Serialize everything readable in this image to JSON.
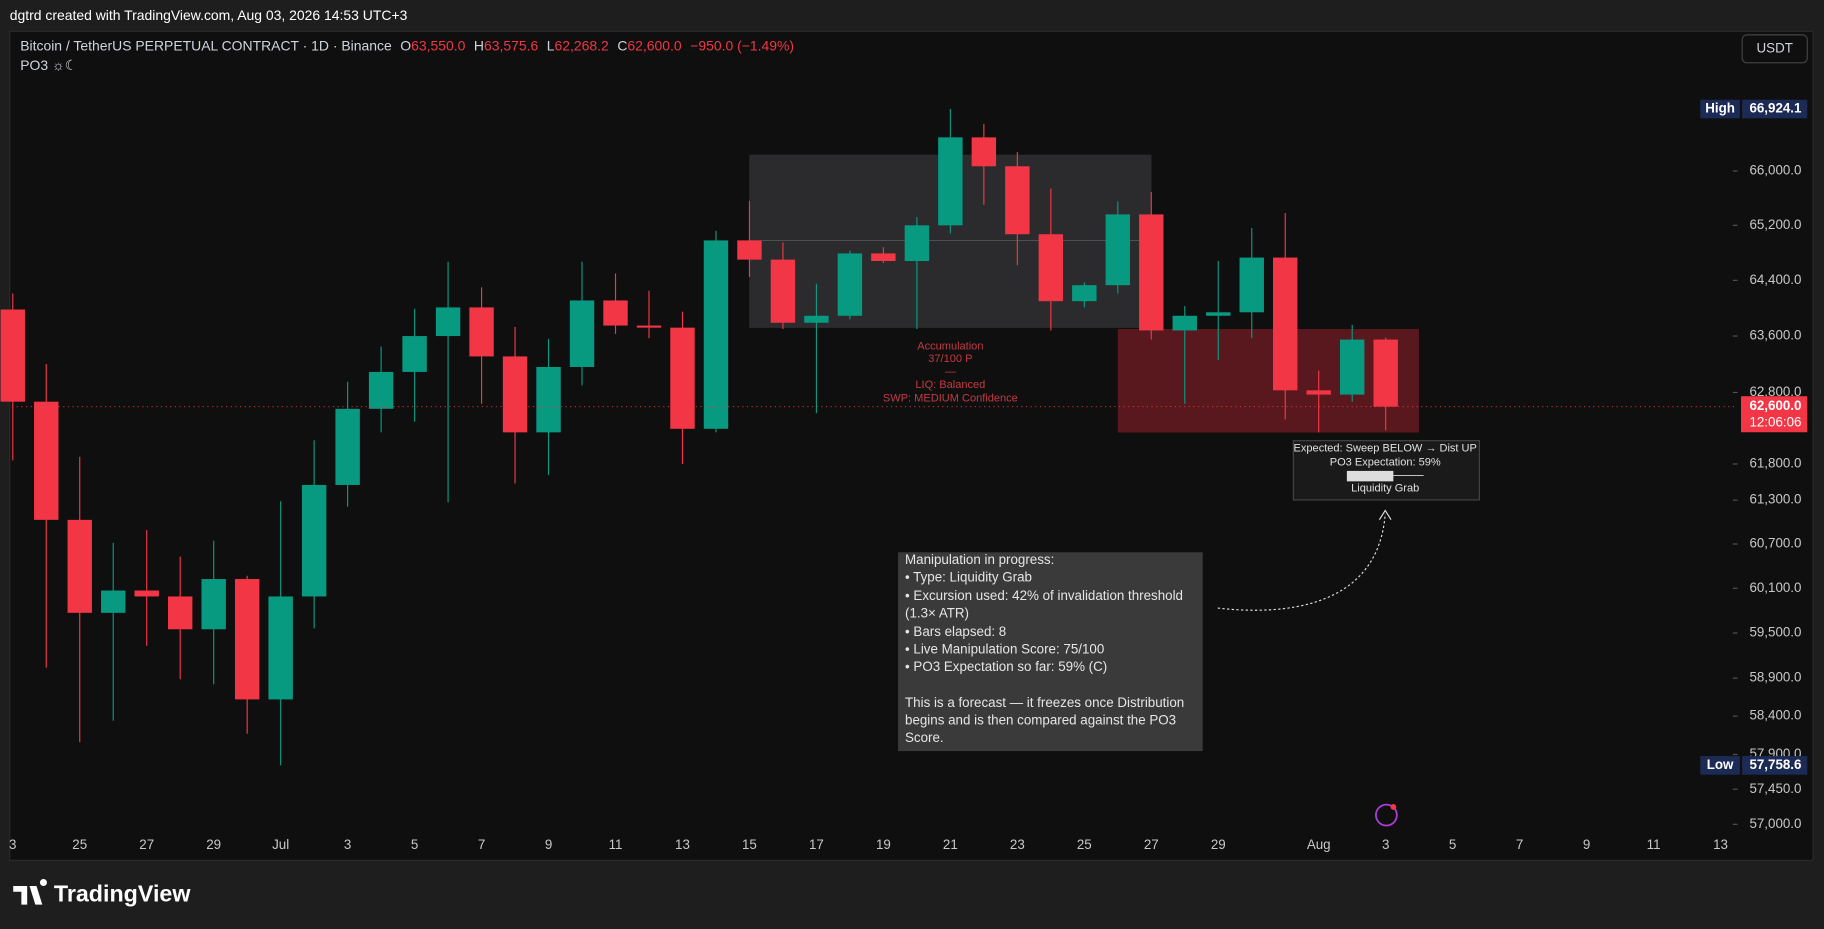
{
  "header": {
    "credit": "dgtrd created with TradingView.com, Aug 03, 2026 14:53 UTC+3",
    "brand": "TradingView"
  },
  "chart_data": {
    "type": "candlestick",
    "title": "Bitcoin / TetherUS PERPETUAL CONTRACT · 1D · Binance",
    "ohlc_header": [
      {
        "name": "O",
        "label": "63,550.0"
      },
      {
        "name": "H",
        "label": "63,575.6"
      },
      {
        "name": "L",
        "label": "62,268.2"
      },
      {
        "name": "C",
        "label": "62,600.0"
      }
    ],
    "change": "−950.0 (−1.49%)",
    "indicator": "PO3 ☼☾",
    "currency": "USDT",
    "categories": [
      "3",
      null,
      "25",
      null,
      "27",
      null,
      "29",
      null,
      "Jul",
      null,
      "3",
      null,
      "5",
      null,
      "7",
      null,
      "9",
      null,
      "11",
      null,
      "13",
      null,
      "15",
      null,
      "17",
      null,
      "19",
      null,
      "21",
      null,
      "23",
      null,
      "25",
      null,
      "27",
      null,
      "29",
      null,
      null,
      "Aug",
      null,
      "3",
      null,
      "5",
      null,
      "7",
      null,
      "9",
      null,
      "11",
      null,
      "13"
    ],
    "open": [
      63980,
      62670,
      61030,
      59770,
      60070,
      59990,
      59550,
      60225,
      58620,
      59990,
      61510,
      62570,
      63090,
      63600,
      64010,
      63310,
      62240,
      63160,
      64110,
      63750,
      63720,
      62290,
      64980,
      64700,
      63790,
      63890,
      64790,
      64680,
      65200,
      66500,
      66070,
      65070,
      64100,
      64330,
      65360,
      63680,
      63890,
      63940,
      64730,
      62830,
      62770,
      63550,
      null,
      null,
      null,
      null,
      null,
      null,
      null,
      null,
      null,
      null
    ],
    "high": [
      64210,
      63200,
      61900,
      60715,
      60890,
      60530,
      60745,
      60270,
      61285,
      62130,
      62950,
      63450,
      63990,
      64670,
      64300,
      63730,
      63560,
      64670,
      64500,
      64250,
      63950,
      65120,
      65560,
      64950,
      64350,
      64830,
      64880,
      65320,
      66924.1,
      66700,
      66280,
      65740,
      64370,
      65550,
      65690,
      64030,
      64680,
      65160,
      65380,
      63110,
      63760,
      63575.6,
      null,
      null,
      null,
      null,
      null,
      null,
      null,
      null,
      null,
      null
    ],
    "low": [
      61850,
      59040,
      58060,
      58340,
      59330,
      58885,
      58820,
      58170,
      57758.6,
      59560,
      61210,
      62240,
      62390,
      61270,
      62640,
      61530,
      61650,
      62900,
      63630,
      63570,
      61800,
      62240,
      64450,
      63700,
      62510,
      63840,
      64650,
      63700,
      65080,
      65500,
      64620,
      63680,
      64010,
      64210,
      63550,
      62640,
      63260,
      63570,
      62420,
      62240,
      62670,
      62268.2,
      null,
      null,
      null,
      null,
      null,
      null,
      null,
      null,
      null,
      null
    ],
    "close": [
      62670,
      61030,
      59770,
      60070,
      59990,
      59550,
      60225,
      58620,
      59990,
      61510,
      62570,
      63090,
      63600,
      64010,
      63310,
      62240,
      63160,
      64110,
      63750,
      63720,
      62290,
      64980,
      64700,
      63790,
      63890,
      64790,
      64680,
      65200,
      66500,
      66070,
      65070,
      64100,
      64330,
      65360,
      63680,
      63890,
      63940,
      64730,
      62830,
      62770,
      63550,
      62600,
      null,
      null,
      null,
      null,
      null,
      null,
      null,
      null,
      null,
      null
    ],
    "up_color": "#089981",
    "down_color": "#f23645",
    "log_scale": true,
    "ylim": [
      56540,
      68100
    ],
    "yticks": [
      {
        "value": 66000,
        "label": "66,000.0"
      },
      {
        "value": 65200,
        "label": "65,200.0"
      },
      {
        "value": 64400,
        "label": "64,400.0"
      },
      {
        "value": 63600,
        "label": "63,600.0"
      },
      {
        "value": 62800,
        "label": "62,800.0"
      },
      {
        "value": 61800,
        "label": "61,800.0"
      },
      {
        "value": 61300,
        "label": "61,300.0"
      },
      {
        "value": 60700,
        "label": "60,700.0"
      },
      {
        "value": 60100,
        "label": "60,100.0"
      },
      {
        "value": 59500,
        "label": "59,500.0"
      },
      {
        "value": 58900,
        "label": "58,900.0"
      },
      {
        "value": 58400,
        "label": "58,400.0"
      },
      {
        "value": 57900,
        "label": "57,900.0"
      },
      {
        "value": 57450,
        "label": "57,450.0"
      },
      {
        "value": 57000,
        "label": "57,000.0"
      }
    ],
    "price_markers": [
      {
        "name": "High",
        "value": 66924.1,
        "label": "66,924.1"
      },
      {
        "name": "Low",
        "value": 57758.6,
        "label": "57,758.6"
      }
    ],
    "last_price": {
      "value": 62600,
      "label": "62,600.0",
      "countdown": "12:06:06"
    },
    "annotations": {
      "accumulation": [
        "Accumulation",
        "37/100 P",
        "—",
        "LIQ: Balanced",
        "SWP: MEDIUM Confidence"
      ],
      "expectation": [
        "Expected: Sweep BELOW → Dist UP",
        "PO3 Expectation: 59%",
        "Liquidity Grab"
      ],
      "manipulation": [
        "Manipulation in progress:",
        "• Type: Liquidity Grab",
        "• Excursion used: 42% of invalidation threshold",
        "(1.3× ATR)",
        "• Bars elapsed: 8",
        "• Live Manipulation Score: 75/100",
        "• PO3 Expectation so far: 59% (C)",
        "This is a forecast — it freezes once Distribution",
        "begins and is then compared against the PO3",
        "Score."
      ]
    }
  }
}
